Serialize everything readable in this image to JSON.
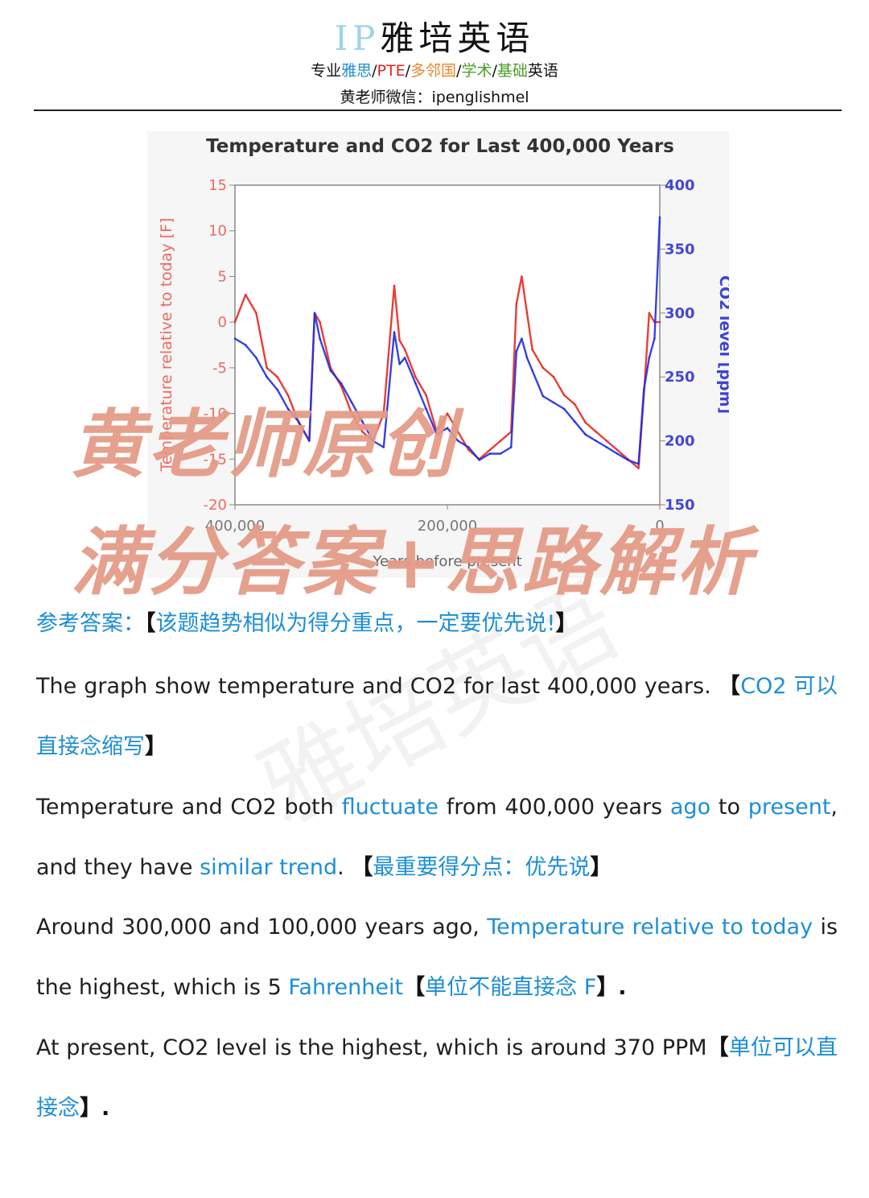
{
  "header": {
    "logo_ip": "IP",
    "logo_cn": "雅培英语",
    "sub_prefix": "专业",
    "sub_ielts": "雅思",
    "sub_sep1": "/",
    "sub_pte": "PTE",
    "sub_sep2": "/",
    "sub_multi": "多邻国",
    "sub_sep3": "/",
    "sub_academic": "学术",
    "sub_sep4": "/",
    "sub_basic": "基础",
    "sub_suffix": "英语",
    "contact": "黄老师微信：ipenglishmel"
  },
  "overlay": {
    "line1": "黄老师原创",
    "line2": "满分答案+思路解析"
  },
  "watermark": "雅培英语",
  "chart_data": {
    "type": "line",
    "title": "Temperature and CO2 for Last 400,000 Years",
    "ylabel_left": "Temperature relative to today [F]",
    "ylabel_right": "CO2 level [ppm]",
    "xlabel": "Years before present",
    "x_tick_labels": [
      "400,000",
      "200,000",
      "0"
    ],
    "ylim_left": [
      -20,
      15
    ],
    "ylim_right": [
      150,
      400
    ],
    "y_ticks_left": [
      "15",
      "10",
      "5",
      "0",
      "-5",
      "-10",
      "-15",
      "-20"
    ],
    "y_ticks_right": [
      "400",
      "350",
      "300",
      "250",
      "200",
      "150"
    ],
    "x": [
      400000,
      390000,
      380000,
      370000,
      360000,
      350000,
      340000,
      330000,
      325000,
      320000,
      310000,
      300000,
      290000,
      280000,
      270000,
      260000,
      250000,
      245000,
      240000,
      230000,
      220000,
      210000,
      200000,
      190000,
      180000,
      170000,
      160000,
      150000,
      140000,
      135000,
      130000,
      125000,
      120000,
      110000,
      100000,
      90000,
      80000,
      70000,
      60000,
      50000,
      40000,
      30000,
      20000,
      15000,
      10000,
      5000,
      0
    ],
    "series": [
      {
        "name": "Temperature",
        "axis": "left",
        "color": "#e8281f",
        "values": [
          0,
          3,
          1,
          -5,
          -6,
          -8,
          -11,
          -13,
          1,
          0,
          -5,
          -7,
          -10,
          -12,
          -13,
          -10,
          4,
          -2,
          -3,
          -6,
          -8,
          -12,
          -10,
          -12,
          -14,
          -15,
          -14,
          -13,
          -12,
          2,
          5,
          1,
          -3,
          -5,
          -6,
          -8,
          -9,
          -11,
          -12,
          -13,
          -14,
          -15,
          -16,
          -8,
          1,
          0,
          0
        ]
      },
      {
        "name": "CO2",
        "axis": "right",
        "color": "#1f2ee0",
        "values": [
          280,
          275,
          265,
          250,
          240,
          225,
          215,
          200,
          300,
          280,
          255,
          245,
          230,
          215,
          200,
          195,
          285,
          260,
          265,
          245,
          225,
          205,
          210,
          200,
          195,
          185,
          190,
          190,
          195,
          270,
          280,
          265,
          255,
          235,
          230,
          225,
          215,
          205,
          200,
          195,
          190,
          185,
          182,
          240,
          265,
          280,
          375
        ]
      }
    ]
  },
  "answer": {
    "title_prefix": "参考答案：",
    "title_bracket_open": "【",
    "title_note": "该题趋势相似为得分重点，一定要优先说!",
    "title_bracket_close": "】",
    "p1_text": "The graph show temperature and CO2 for last 400,000 years.",
    "p1_open": "【",
    "p1_note": "CO2 可以直接念缩写",
    "p1_close": "】",
    "p2_a": "Temperature and CO2 both ",
    "p2_fluctuate": "fluctuate",
    "p2_b": " from 400,000 years ",
    "p2_ago": "ago",
    "p2_c": " to ",
    "p2_present": "present",
    "p2_d": ", and they have ",
    "p2_similar": "similar trend",
    "p2_e": ".",
    "p2_open": "【",
    "p2_note": "最重要得分点：优先说",
    "p2_close": "】",
    "p3_a": "Around 300,000 and 100,000 years ago, ",
    "p3_rel": "Temperature relative to today",
    "p3_b": " is the highest, which is 5 ",
    "p3_fahr": "Fahrenheit",
    "p3_open": "【",
    "p3_note": "单位不能直接念 F",
    "p3_close": "】.",
    "p4_a": "At present, CO2 level is the highest, which is around 370 PPM",
    "p4_open": "【",
    "p4_note": "单位可以直接念",
    "p4_close": "】."
  }
}
